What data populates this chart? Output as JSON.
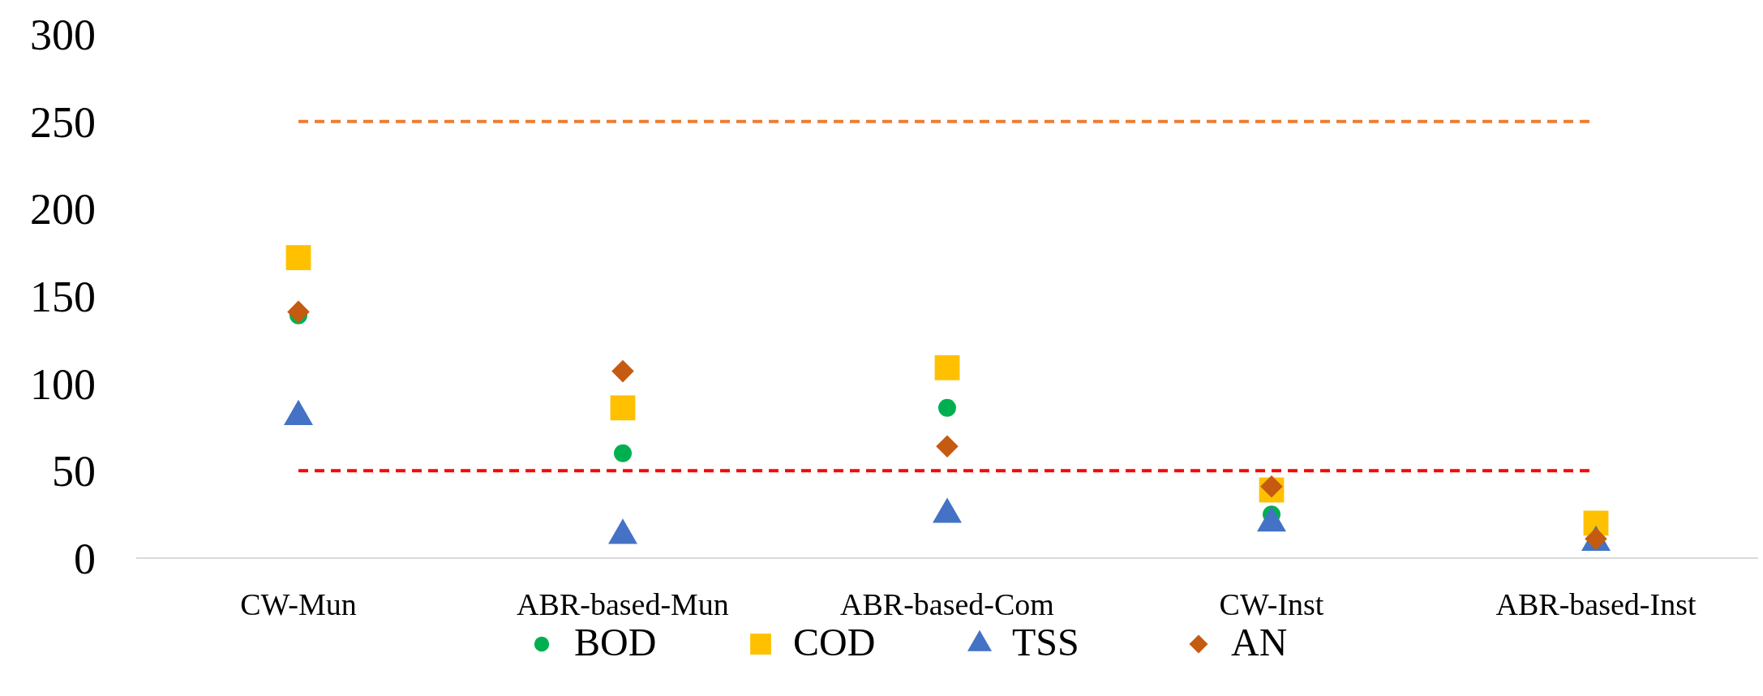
{
  "chart_data": {
    "type": "scatter",
    "categories": [
      "CW-Mun",
      "ABR-based-Mun",
      "ABR-based-Com",
      "CW-Inst",
      "ABR-based-Inst"
    ],
    "series": [
      {
        "name": "BOD",
        "color": "#00b050",
        "marker": "circle",
        "values": [
          139,
          60,
          86,
          25,
          null
        ]
      },
      {
        "name": "COD",
        "color": "#ffc000",
        "marker": "square",
        "values": [
          172,
          86,
          109,
          39,
          20
        ]
      },
      {
        "name": "TSS",
        "color": "#4472c4",
        "marker": "triangle",
        "values": [
          81,
          13,
          25,
          20,
          9
        ]
      },
      {
        "name": "AN",
        "color": "#c55a11",
        "marker": "diamond",
        "values": [
          141,
          107,
          64,
          41,
          11
        ]
      }
    ],
    "ylim": [
      0,
      300
    ],
    "yticks": [
      0,
      50,
      100,
      150,
      200,
      250,
      300
    ],
    "grid": false,
    "legend": "bottom",
    "ref_lines": [
      {
        "axis": "y",
        "value": 250,
        "color": "#ed7d31",
        "line_style": "dashed"
      },
      {
        "axis": "y",
        "value": 50,
        "color": "#ff0000",
        "line_style": "dashed"
      }
    ]
  }
}
